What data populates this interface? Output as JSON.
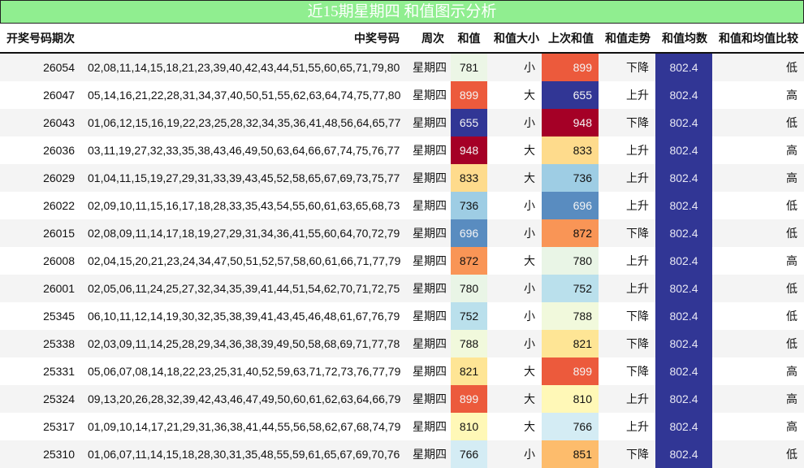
{
  "title": "近15期星期四 和值图示分析",
  "headers": {
    "period": "开奖号码期次",
    "numbers": "中奖号码",
    "weekday": "周次",
    "sum": "和值",
    "size": "和值大小",
    "prev_sum": "上次和值",
    "trend": "和值走势",
    "mean": "和值均数",
    "compare": "和值和均值比较"
  },
  "colors": {
    "title_bg": "#90ee90",
    "mean_bg": "#313695",
    "scale": {
      "655": "#313695",
      "696": "#598cc0",
      "736": "#9ecde4",
      "752": "#bae0ec",
      "766": "#d4ecf4",
      "780": "#e9f5e6",
      "781": "#ecf6e6",
      "788": "#f1f9dc",
      "810": "#fff8b7",
      "821": "#fee595",
      "833": "#fedb8c",
      "851": "#fdbc6c",
      "872": "#f99556",
      "899": "#ec5a3c",
      "948": "#a50026"
    },
    "light_text_values": [
      "655",
      "696",
      "899",
      "948"
    ]
  },
  "rows": [
    {
      "period": "26054",
      "numbers": "02,08,11,14,15,18,21,23,39,40,42,43,44,51,55,60,65,71,79,80",
      "weekday": "星期四",
      "sum": "781",
      "size": "小",
      "prev_sum": "899",
      "trend": "下降",
      "mean": "802.4",
      "compare": "低"
    },
    {
      "period": "26047",
      "numbers": "05,14,16,21,22,28,31,34,37,40,50,51,55,62,63,64,74,75,77,80",
      "weekday": "星期四",
      "sum": "899",
      "size": "大",
      "prev_sum": "655",
      "trend": "上升",
      "mean": "802.4",
      "compare": "高"
    },
    {
      "period": "26043",
      "numbers": "01,06,12,15,16,19,22,23,25,28,32,34,35,36,41,48,56,64,65,77",
      "weekday": "星期四",
      "sum": "655",
      "size": "小",
      "prev_sum": "948",
      "trend": "下降",
      "mean": "802.4",
      "compare": "低"
    },
    {
      "period": "26036",
      "numbers": "03,11,19,27,32,33,35,38,43,46,49,50,63,64,66,67,74,75,76,77",
      "weekday": "星期四",
      "sum": "948",
      "size": "大",
      "prev_sum": "833",
      "trend": "上升",
      "mean": "802.4",
      "compare": "高"
    },
    {
      "period": "26029",
      "numbers": "01,04,11,15,19,27,29,31,33,39,43,45,52,58,65,67,69,73,75,77",
      "weekday": "星期四",
      "sum": "833",
      "size": "大",
      "prev_sum": "736",
      "trend": "上升",
      "mean": "802.4",
      "compare": "高"
    },
    {
      "period": "26022",
      "numbers": "02,09,10,11,15,16,17,18,28,33,35,43,54,55,60,61,63,65,68,73",
      "weekday": "星期四",
      "sum": "736",
      "size": "小",
      "prev_sum": "696",
      "trend": "上升",
      "mean": "802.4",
      "compare": "低"
    },
    {
      "period": "26015",
      "numbers": "02,08,09,11,14,17,18,19,27,29,31,34,36,41,55,60,64,70,72,79",
      "weekday": "星期四",
      "sum": "696",
      "size": "小",
      "prev_sum": "872",
      "trend": "下降",
      "mean": "802.4",
      "compare": "低"
    },
    {
      "period": "26008",
      "numbers": "02,04,15,20,21,23,24,34,47,50,51,52,57,58,60,61,66,71,77,79",
      "weekday": "星期四",
      "sum": "872",
      "size": "大",
      "prev_sum": "780",
      "trend": "上升",
      "mean": "802.4",
      "compare": "高"
    },
    {
      "period": "26001",
      "numbers": "02,05,06,11,24,25,27,32,34,35,39,41,44,51,54,62,70,71,72,75",
      "weekday": "星期四",
      "sum": "780",
      "size": "小",
      "prev_sum": "752",
      "trend": "上升",
      "mean": "802.4",
      "compare": "低"
    },
    {
      "period": "25345",
      "numbers": "06,10,11,12,14,19,30,32,35,38,39,41,43,45,46,48,61,67,76,79",
      "weekday": "星期四",
      "sum": "752",
      "size": "小",
      "prev_sum": "788",
      "trend": "下降",
      "mean": "802.4",
      "compare": "低"
    },
    {
      "period": "25338",
      "numbers": "02,03,09,11,14,25,28,29,34,36,38,39,49,50,58,68,69,71,77,78",
      "weekday": "星期四",
      "sum": "788",
      "size": "小",
      "prev_sum": "821",
      "trend": "下降",
      "mean": "802.4",
      "compare": "低"
    },
    {
      "period": "25331",
      "numbers": "05,06,07,08,14,18,22,23,25,31,40,52,59,63,71,72,73,76,77,79",
      "weekday": "星期四",
      "sum": "821",
      "size": "大",
      "prev_sum": "899",
      "trend": "下降",
      "mean": "802.4",
      "compare": "高"
    },
    {
      "period": "25324",
      "numbers": "09,13,20,26,28,32,39,42,43,46,47,49,50,60,61,62,63,64,66,79",
      "weekday": "星期四",
      "sum": "899",
      "size": "大",
      "prev_sum": "810",
      "trend": "上升",
      "mean": "802.4",
      "compare": "高"
    },
    {
      "period": "25317",
      "numbers": "01,09,10,14,17,21,29,31,36,38,41,44,55,56,58,62,67,68,74,79",
      "weekday": "星期四",
      "sum": "810",
      "size": "大",
      "prev_sum": "766",
      "trend": "上升",
      "mean": "802.4",
      "compare": "高"
    },
    {
      "period": "25310",
      "numbers": "01,06,07,11,14,15,18,28,30,31,35,48,55,59,61,65,67,69,70,76",
      "weekday": "星期四",
      "sum": "766",
      "size": "小",
      "prev_sum": "851",
      "trend": "下降",
      "mean": "802.4",
      "compare": "低"
    }
  ]
}
